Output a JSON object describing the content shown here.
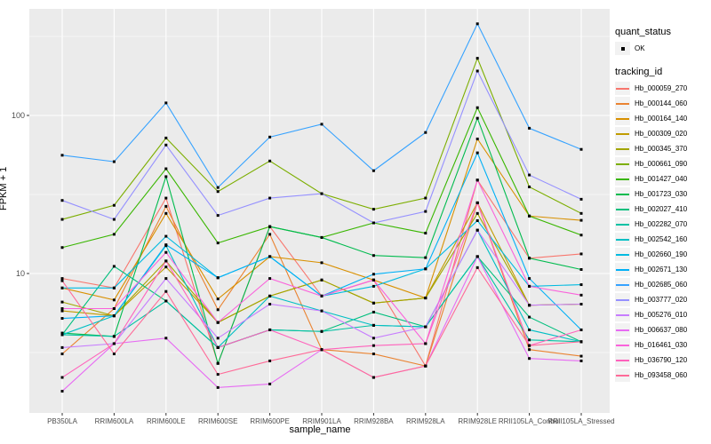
{
  "figure": {
    "background": "#FFFFFF",
    "panel_background": "#EBEBEB",
    "grid_color": "#FFFFFF",
    "axis_text_color": "#4D4D4D",
    "point_color": "#000000"
  },
  "axes": {
    "x_title": "sample_name",
    "y_title": "FPKM + 1",
    "y_ticks": [
      {
        "label": "100",
        "value": 100
      },
      {
        "label": "10",
        "value": 10
      }
    ]
  },
  "legend": {
    "quant_status_title": "quant_status",
    "quant_status_items": [
      {
        "label": "OK"
      }
    ],
    "tracking_id_title": "tracking_id"
  },
  "chart_data": {
    "type": "line",
    "title": "",
    "xlabel": "sample_name",
    "ylabel": "FPKM + 1",
    "y_scale": "log10",
    "ylim": [
      1.3,
      470
    ],
    "grid": true,
    "legend_position": "right",
    "marker": "small-black-square",
    "quant_status": "OK",
    "x_categories": [
      "PB350LA",
      "RRIM600LA",
      "RRIM600LE",
      "RRIM600SE",
      "RRIM600PE",
      "RRIM901LA",
      "RRIM928BA",
      "RRIM928LA",
      "RRIM928LE",
      "RRII105LA_Control",
      "RRII105LA_Stressed"
    ],
    "series": [
      {
        "name": "Hb_000059_270",
        "color": "#F8766D",
        "values": [
          9.3,
          8.1,
          30,
          2.7,
          19.8,
          7.2,
          9.1,
          2.6,
          39,
          12.5,
          13.3
        ]
      },
      {
        "name": "Hb_000144_060",
        "color": "#EA8331",
        "values": [
          3.1,
          6,
          26.6,
          5.9,
          17.7,
          3.3,
          3.1,
          2.6,
          28,
          3.3,
          3
        ]
      },
      {
        "name": "Hb_000164_140",
        "color": "#D89000",
        "values": [
          8.1,
          6.8,
          24,
          6.9,
          12.8,
          11.7,
          9.1,
          7,
          71,
          23.1,
          21.7
        ]
      },
      {
        "name": "Hb_000309_020",
        "color": "#C09B00",
        "values": [
          5.8,
          5.4,
          11,
          4.9,
          7.2,
          9.1,
          6.5,
          7,
          28,
          6.3,
          6.4
        ]
      },
      {
        "name": "Hb_000345_370",
        "color": "#A3A500",
        "values": [
          6.6,
          5.4,
          12,
          4.9,
          7.2,
          9.1,
          6.5,
          7,
          24,
          6.3,
          6.4
        ]
      },
      {
        "name": "Hb_000661_090",
        "color": "#7CAE00",
        "values": [
          22,
          27,
          72,
          33,
          51.5,
          32,
          25.5,
          30,
          230,
          35.3,
          24
        ]
      },
      {
        "name": "Hb_001427_040",
        "color": "#39B600",
        "values": [
          14.6,
          17.7,
          46,
          15.6,
          19.8,
          16.9,
          20.9,
          18,
          112,
          23.1,
          17.5
        ]
      },
      {
        "name": "Hb_001723_030",
        "color": "#00BB4E",
        "values": [
          4.2,
          4,
          41,
          2.7,
          19.8,
          16.9,
          13,
          12.6,
          96,
          12.5,
          10.6
        ]
      },
      {
        "name": "Hb_002027_410",
        "color": "#00BF7D",
        "values": [
          4.1,
          11.1,
          6.7,
          3.4,
          4.4,
          4.3,
          5.7,
          4.6,
          12.8,
          5.3,
          3.7
        ]
      },
      {
        "name": "Hb_002282_070",
        "color": "#00C1A3",
        "values": [
          4.1,
          4,
          6.7,
          3.4,
          4.4,
          4.3,
          4.7,
          4.6,
          12.8,
          3.8,
          3.7
        ]
      },
      {
        "name": "Hb_002542_160",
        "color": "#00BFC4",
        "values": [
          4.1,
          5.4,
          15,
          3.4,
          7.2,
          5.8,
          4.7,
          4.6,
          18.8,
          4.4,
          3.7
        ]
      },
      {
        "name": "Hb_002660_190",
        "color": "#00BAE0",
        "values": [
          8.1,
          8.1,
          17.2,
          9.4,
          12.8,
          7.2,
          8.3,
          10.7,
          21.6,
          8.3,
          8.5
        ]
      },
      {
        "name": "Hb_002671_130",
        "color": "#00B0F6",
        "values": [
          5.2,
          5.4,
          15.2,
          9.4,
          12.8,
          7.2,
          9.9,
          10.7,
          58,
          9.3,
          4.4
        ]
      },
      {
        "name": "Hb_002685_060",
        "color": "#35A2FF",
        "values": [
          56,
          51,
          120,
          35,
          73,
          88,
          44.7,
          78,
          380,
          83,
          61
        ]
      },
      {
        "name": "Hb_003777_020",
        "color": "#9590FF",
        "values": [
          29,
          22,
          65,
          23.3,
          30,
          32,
          20.9,
          24.7,
          191,
          42,
          29.5
        ]
      },
      {
        "name": "Hb_005276_010",
        "color": "#C77CFF",
        "values": [
          3.4,
          3.6,
          9.3,
          3.9,
          6.4,
          5.8,
          3.9,
          4.6,
          18.8,
          6.3,
          6.4
        ]
      },
      {
        "name": "Hb_006637_080",
        "color": "#E76BF3",
        "values": [
          1.8,
          3.6,
          3.9,
          1.9,
          2,
          3.3,
          2.2,
          2.6,
          12.8,
          2.9,
          2.8
        ]
      },
      {
        "name": "Hb_016461_030",
        "color": "#FA62DB",
        "values": [
          6,
          6,
          13.6,
          4.9,
          9.3,
          7.2,
          9.1,
          3.6,
          39,
          8.3,
          7.3
        ]
      },
      {
        "name": "Hb_036790_120",
        "color": "#FF62BC",
        "values": [
          2.2,
          3.6,
          12,
          3.4,
          4.4,
          3.3,
          3.5,
          3.6,
          28,
          3.5,
          4.4
        ]
      },
      {
        "name": "Hb_093458_060",
        "color": "#FF6A98",
        "values": [
          9,
          3.1,
          7.7,
          2.3,
          2.8,
          3.3,
          2.2,
          2.6,
          10.9,
          3.5,
          3.7
        ]
      }
    ]
  }
}
